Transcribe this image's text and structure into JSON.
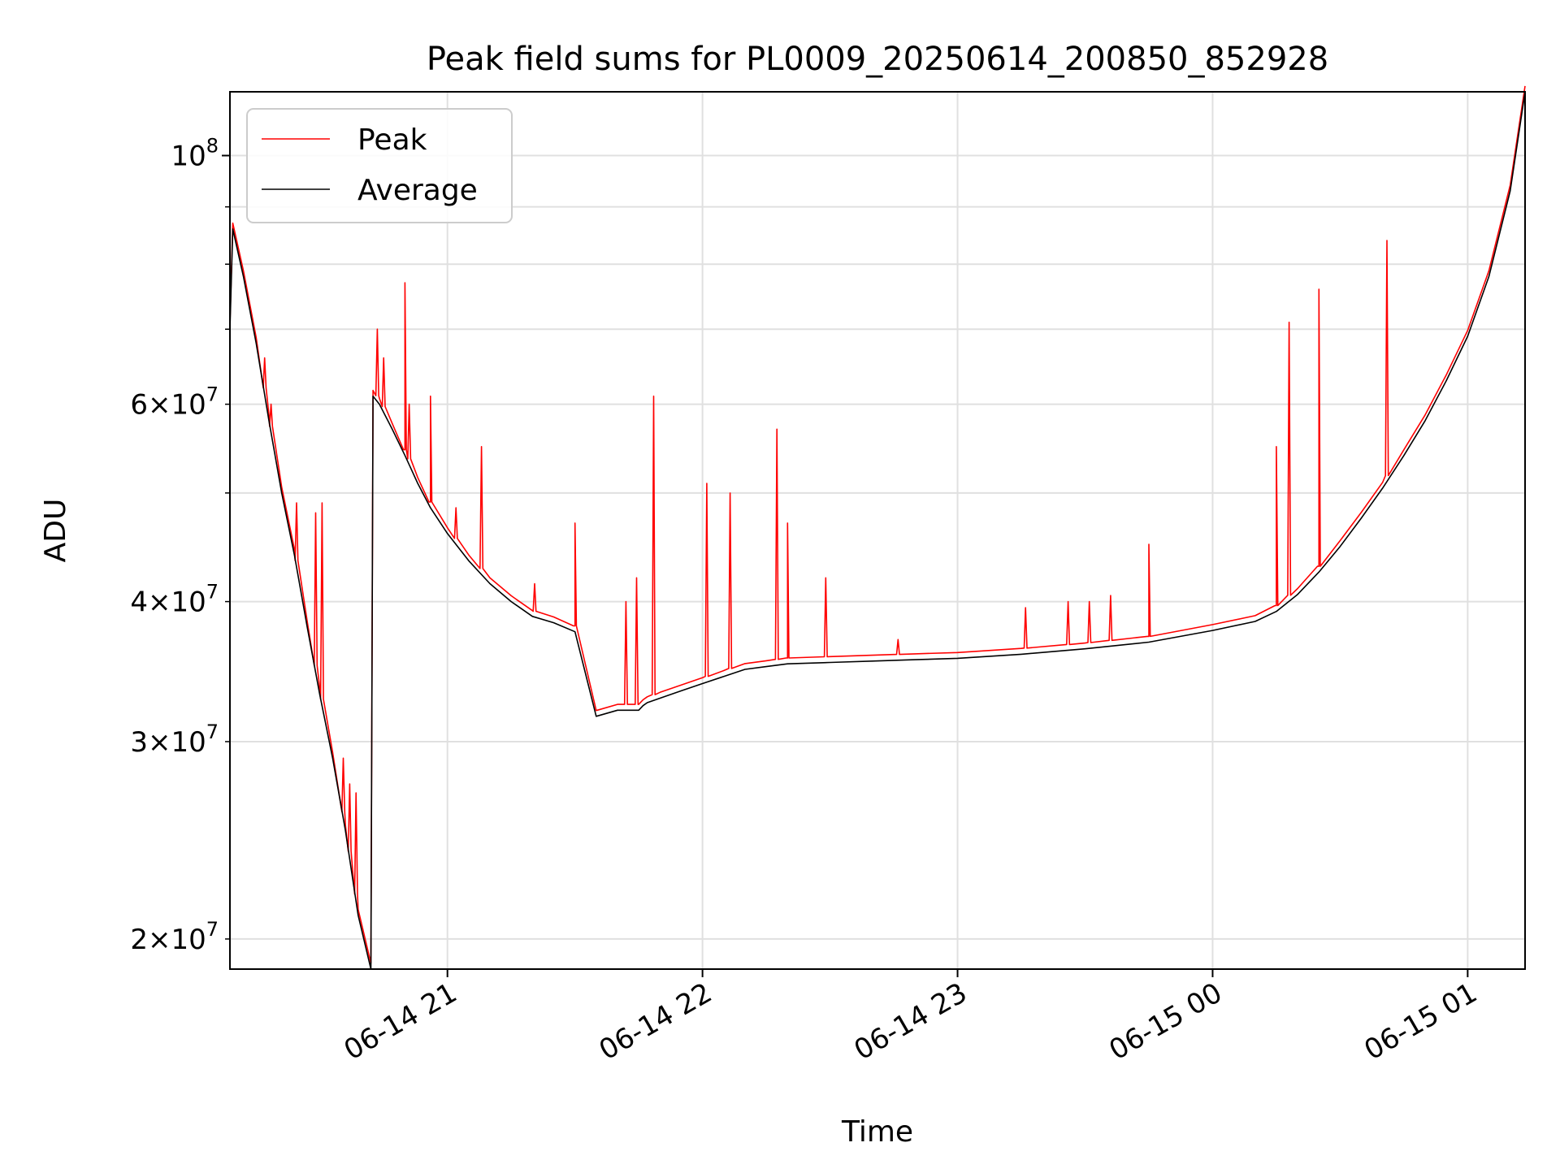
{
  "chart_data": {
    "type": "line",
    "title": "Peak field sums for PL0009_20250614_200850_852928",
    "xlabel": "Time",
    "ylabel": "ADU",
    "yscale": "log",
    "xlim": [
      "2025-06-14 20:08:50",
      "2025-06-15 01:13:30"
    ],
    "ylim": [
      18800000,
      114000000
    ],
    "grid": true,
    "legend": {
      "position": "top-left",
      "entries": [
        "Peak",
        "Average"
      ]
    },
    "x_ticks": [
      {
        "value": "2025-06-14 21:00",
        "label": "06-14 21"
      },
      {
        "value": "2025-06-14 22:00",
        "label": "06-14 22"
      },
      {
        "value": "2025-06-14 23:00",
        "label": "06-14 23"
      },
      {
        "value": "2025-06-15 00:00",
        "label": "06-15 00"
      },
      {
        "value": "2025-06-15 01:00",
        "label": "06-15 01"
      }
    ],
    "y_ticks_major": [
      {
        "value": 100000000,
        "base": "10",
        "exp": "8"
      }
    ],
    "y_ticks_minor": [
      {
        "value": 20000000,
        "mant": "2",
        "exp": "7"
      },
      {
        "value": 30000000,
        "mant": "3",
        "exp": "7"
      },
      {
        "value": 40000000,
        "mant": "4",
        "exp": "7"
      },
      {
        "value": 60000000,
        "mant": "6",
        "exp": "7"
      }
    ],
    "y_minor_unlabeled": [
      50000000,
      70000000,
      80000000,
      90000000
    ],
    "series": [
      {
        "name": "Average",
        "color": "#000000",
        "x": [
          "2025-06-14 20:08:50",
          "2025-06-14 20:09:30",
          "2025-06-14 20:12:00",
          "2025-06-14 20:15:00",
          "2025-06-14 20:18:00",
          "2025-06-14 20:21:00",
          "2025-06-14 20:24:00",
          "2025-06-14 20:27:00",
          "2025-06-14 20:30:00",
          "2025-06-14 20:33:00",
          "2025-06-14 20:36:00",
          "2025-06-14 20:39:00",
          "2025-06-14 20:42:00",
          "2025-06-14 20:42:30",
          "2025-06-14 20:44:00",
          "2025-06-14 20:47:00",
          "2025-06-14 20:50:00",
          "2025-06-14 20:53:00",
          "2025-06-14 20:56:00",
          "2025-06-14 21:00:00",
          "2025-06-14 21:05:00",
          "2025-06-14 21:10:00",
          "2025-06-14 21:15:00",
          "2025-06-14 21:20:00",
          "2025-06-14 21:25:00",
          "2025-06-14 21:30:00",
          "2025-06-14 21:35:00",
          "2025-06-14 21:40:00",
          "2025-06-14 21:45:00",
          "2025-06-14 21:46:00",
          "2025-06-14 21:47:00",
          "2025-06-14 21:50:00",
          "2025-06-14 21:55:00",
          "2025-06-14 22:00:00",
          "2025-06-14 22:05:00",
          "2025-06-14 22:10:00",
          "2025-06-14 22:15:00",
          "2025-06-14 22:20:00",
          "2025-06-14 22:30:00",
          "2025-06-14 22:40:00",
          "2025-06-14 22:50:00",
          "2025-06-14 23:00:00",
          "2025-06-14 23:15:00",
          "2025-06-14 23:30:00",
          "2025-06-14 23:45:00",
          "2025-06-15 00:00:00",
          "2025-06-15 00:10:00",
          "2025-06-15 00:15:00",
          "2025-06-15 00:20:00",
          "2025-06-15 00:25:00",
          "2025-06-15 00:30:00",
          "2025-06-15 00:35:00",
          "2025-06-15 00:40:00",
          "2025-06-15 00:45:00",
          "2025-06-15 00:50:00",
          "2025-06-15 00:55:00",
          "2025-06-15 01:00:00",
          "2025-06-15 01:05:00",
          "2025-06-15 01:10:00",
          "2025-06-15 01:13:30"
        ],
        "y": [
          70000000,
          86000000,
          78000000,
          68000000,
          58000000,
          50000000,
          44000000,
          38000000,
          33000000,
          29000000,
          25000000,
          21000000,
          18800000,
          61000000,
          60000000,
          57000000,
          54000000,
          51000000,
          48500000,
          46000000,
          43500000,
          41500000,
          40000000,
          38800000,
          38300000,
          37600000,
          31600000,
          32000000,
          32000000,
          32300000,
          32500000,
          32800000,
          33300000,
          33800000,
          34300000,
          34800000,
          35000000,
          35200000,
          35300000,
          35400000,
          35500000,
          35600000,
          35900000,
          36300000,
          36800000,
          37700000,
          38400000,
          39200000,
          40600000,
          42500000,
          44800000,
          47500000,
          50500000,
          54000000,
          58000000,
          63000000,
          69000000,
          78000000,
          93000000,
          114000000
        ]
      },
      {
        "name": "Peak",
        "color": "#ff0000",
        "spikes": [
          {
            "x": "2025-06-14 20:17:00",
            "y": 66000000
          },
          {
            "x": "2025-06-14 20:18:30",
            "y": 60000000
          },
          {
            "x": "2025-06-14 20:24:30",
            "y": 49000000
          },
          {
            "x": "2025-06-14 20:29:00",
            "y": 48000000
          },
          {
            "x": "2025-06-14 20:30:30",
            "y": 49000000
          },
          {
            "x": "2025-06-14 20:35:30",
            "y": 29000000
          },
          {
            "x": "2025-06-14 20:37:00",
            "y": 27500000
          },
          {
            "x": "2025-06-14 20:38:30",
            "y": 27000000
          },
          {
            "x": "2025-06-14 20:43:30",
            "y": 70000000
          },
          {
            "x": "2025-06-14 20:45:00",
            "y": 66000000
          },
          {
            "x": "2025-06-14 20:50:00",
            "y": 77000000
          },
          {
            "x": "2025-06-14 20:51:00",
            "y": 60000000
          },
          {
            "x": "2025-06-14 20:56:00",
            "y": 61000000
          },
          {
            "x": "2025-06-14 21:02:00",
            "y": 48500000
          },
          {
            "x": "2025-06-14 21:08:00",
            "y": 55000000
          },
          {
            "x": "2025-06-14 21:20:30",
            "y": 41500000
          },
          {
            "x": "2025-06-14 21:30:00",
            "y": 47000000
          },
          {
            "x": "2025-06-14 21:42:00",
            "y": 40000000
          },
          {
            "x": "2025-06-14 21:44:30",
            "y": 42000000
          },
          {
            "x": "2025-06-14 21:48:30",
            "y": 61000000
          },
          {
            "x": "2025-06-14 22:01:00",
            "y": 51000000
          },
          {
            "x": "2025-06-14 22:06:30",
            "y": 50000000
          },
          {
            "x": "2025-06-14 22:17:30",
            "y": 57000000
          },
          {
            "x": "2025-06-14 22:20:00",
            "y": 47000000
          },
          {
            "x": "2025-06-14 22:29:00",
            "y": 42000000
          },
          {
            "x": "2025-06-14 22:46:00",
            "y": 37000000
          },
          {
            "x": "2025-06-14 23:16:00",
            "y": 39500000
          },
          {
            "x": "2025-06-14 23:26:00",
            "y": 40000000
          },
          {
            "x": "2025-06-14 23:31:00",
            "y": 40000000
          },
          {
            "x": "2025-06-14 23:36:00",
            "y": 40500000
          },
          {
            "x": "2025-06-14 23:45:00",
            "y": 45000000
          },
          {
            "x": "2025-06-15 00:15:00",
            "y": 55000000
          },
          {
            "x": "2025-06-15 00:18:00",
            "y": 71000000
          },
          {
            "x": "2025-06-15 00:25:00",
            "y": 76000000
          },
          {
            "x": "2025-06-15 00:41:00",
            "y": 84000000
          }
        ]
      }
    ]
  }
}
